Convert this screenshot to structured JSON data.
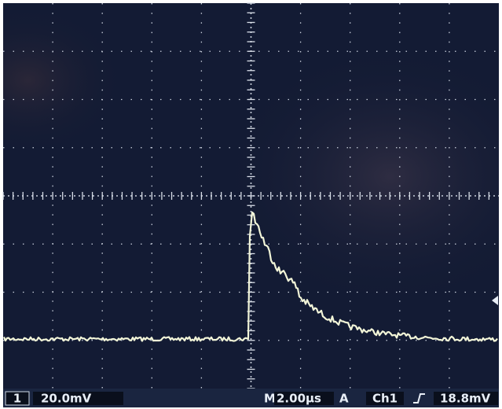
{
  "status_bar": {
    "channel": "1",
    "scale": "20.0mV",
    "mode": "M",
    "timebase": "2.00µs",
    "trigger_mode": "A",
    "trigger_source": "Ch1",
    "trigger_level": "18.8mV"
  }
}
